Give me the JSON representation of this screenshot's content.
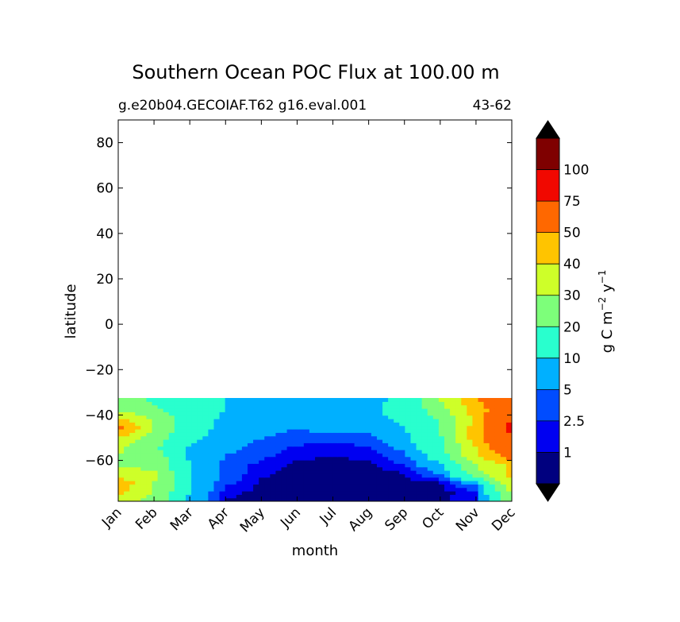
{
  "chart_data": {
    "type": "heatmap",
    "title": "Southern Ocean POC Flux at 100.00 m",
    "subtitle_left": "g.e20b04.GECOIAF.T62 g16.eval.001",
    "subtitle_right": "43-62",
    "xlabel": "month",
    "ylabel": "latitude",
    "x_categories": [
      "Jan",
      "Feb",
      "Mar",
      "Apr",
      "May",
      "Jun",
      "Jul",
      "Aug",
      "Sep",
      "Oct",
      "Nov",
      "Dec"
    ],
    "y_ticks": [
      80,
      60,
      40,
      20,
      0,
      -20,
      -40,
      -60
    ],
    "y_tick_labels": [
      "80",
      "60",
      "40",
      "20",
      "0",
      "−20",
      "−40",
      "−60"
    ],
    "ylim": [
      -78,
      90
    ],
    "data_lat_range": [
      -78,
      -32.5
    ],
    "colorbar": {
      "label_text": "g C m",
      "label_exp1": "−2",
      "label_mid": " y",
      "label_exp2": "−1",
      "levels": [
        0,
        1,
        2.5,
        5,
        10,
        20,
        30,
        40,
        50,
        75,
        100,
        150
      ],
      "tick_labels": [
        "1",
        "2.5",
        "5",
        "10",
        "20",
        "30",
        "40",
        "50",
        "75",
        "100"
      ],
      "colors": [
        "#00007f",
        "#0000f1",
        "#004cff",
        "#00b0ff",
        "#29ffce",
        "#7dff7a",
        "#ceff29",
        "#ffc400",
        "#ff6800",
        "#f10800",
        "#7f0000"
      ],
      "under_color": "#000000",
      "over_color": "#000000",
      "extend": "both"
    },
    "field_latitudes": [
      -78,
      -74,
      -70,
      -66,
      -62,
      -58,
      -54,
      -50,
      -46,
      -42,
      -38,
      -32.5
    ],
    "field_values": [
      [
        35,
        25,
        8,
        0.8,
        0.5,
        0.5,
        0.5,
        0.5,
        0.5,
        0.8,
        2,
        25
      ],
      [
        42,
        30,
        10,
        1.5,
        0.6,
        0.5,
        0.5,
        0.5,
        0.5,
        0.6,
        1.5,
        32
      ],
      [
        48,
        30,
        10,
        3,
        0.7,
        0.5,
        0.5,
        0.5,
        0.5,
        0.6,
        6,
        38
      ],
      [
        35,
        32,
        10,
        4,
        1.2,
        0.5,
        0.5,
        0.5,
        0.7,
        5,
        25,
        44
      ],
      [
        28,
        28,
        10,
        4,
        1.8,
        0.6,
        0.5,
        0.7,
        2.5,
        9,
        30,
        42
      ],
      [
        30,
        25,
        9,
        5,
        3,
        1.5,
        0.9,
        1.5,
        4,
        14,
        38,
        55
      ],
      [
        32,
        22,
        9,
        6,
        4,
        2.2,
        1.5,
        2.5,
        6,
        17,
        40,
        70
      ],
      [
        40,
        25,
        12,
        7,
        5,
        4,
        3.5,
        4,
        8,
        19,
        45,
        70
      ],
      [
        55,
        30,
        13,
        8,
        6,
        5,
        6,
        6,
        10,
        20,
        45,
        85
      ],
      [
        45,
        30,
        13,
        9,
        7,
        6,
        7,
        8,
        11,
        21,
        42,
        75
      ],
      [
        30,
        22,
        12,
        10,
        8,
        7,
        8,
        9,
        12,
        25,
        45,
        60
      ],
      [
        25,
        18,
        12,
        10,
        9,
        8,
        8,
        8,
        12,
        30,
        50,
        60
      ]
    ]
  }
}
